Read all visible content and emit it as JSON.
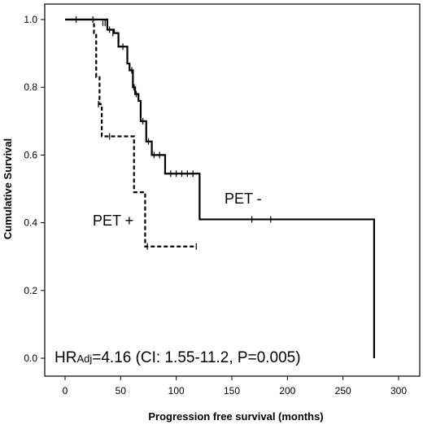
{
  "chart_data": {
    "type": "line",
    "step": true,
    "xlabel": "Progression free survival (months)",
    "ylabel": "Cumulative Survival",
    "xlim": [
      0,
      300
    ],
    "ylim": [
      0,
      1.0
    ],
    "x_ticks": [
      0,
      50,
      100,
      150,
      200,
      250,
      300
    ],
    "y_ticks": [
      0.0,
      0.2,
      0.4,
      0.6,
      0.8,
      1.0
    ],
    "x_tick_labels": [
      "0",
      "50",
      "100",
      "150",
      "200",
      "250",
      "300"
    ],
    "y_tick_labels": [
      "0.0",
      "0.2",
      "0.4",
      "0.6",
      "0.8",
      "1.0"
    ],
    "grid": false,
    "series": [
      {
        "name": "PET -",
        "style": "solid",
        "color": "#000000",
        "steps": [
          [
            0,
            1.0
          ],
          [
            38,
            0.97
          ],
          [
            44,
            0.96
          ],
          [
            48,
            0.92
          ],
          [
            56,
            0.87
          ],
          [
            58,
            0.85
          ],
          [
            61,
            0.8
          ],
          [
            63,
            0.78
          ],
          [
            66,
            0.76
          ],
          [
            68,
            0.7
          ],
          [
            73,
            0.64
          ],
          [
            78,
            0.6
          ],
          [
            90,
            0.545
          ],
          [
            121,
            0.41
          ],
          [
            278,
            0.41
          ],
          [
            278,
            0.0
          ]
        ],
        "censored": [
          [
            10,
            1.0
          ],
          [
            25,
            1.0
          ],
          [
            34,
            0.99
          ],
          [
            36,
            0.99
          ],
          [
            40,
            0.97
          ],
          [
            43,
            0.96
          ],
          [
            52,
            0.92
          ],
          [
            60,
            0.85
          ],
          [
            62,
            0.8
          ],
          [
            64,
            0.78
          ],
          [
            70,
            0.7
          ],
          [
            75,
            0.64
          ],
          [
            80,
            0.6
          ],
          [
            85,
            0.6
          ],
          [
            95,
            0.545
          ],
          [
            100,
            0.545
          ],
          [
            105,
            0.545
          ],
          [
            110,
            0.545
          ],
          [
            115,
            0.545
          ],
          [
            168,
            0.41
          ],
          [
            185,
            0.41
          ]
        ]
      },
      {
        "name": "PET +",
        "style": "dashed",
        "color": "#000000",
        "steps": [
          [
            0,
            1.0
          ],
          [
            26,
            0.96
          ],
          [
            28,
            0.83
          ],
          [
            31,
            0.75
          ],
          [
            33,
            0.655
          ],
          [
            62,
            0.49
          ],
          [
            72,
            0.33
          ],
          [
            118,
            0.33
          ]
        ],
        "censored": [
          [
            30,
            0.75
          ],
          [
            40,
            0.655
          ],
          [
            74,
            0.33
          ],
          [
            118,
            0.33
          ]
        ]
      }
    ],
    "annotations": {
      "pet_minus_label": "PET -",
      "pet_plus_label": "PET +",
      "hr_prefix": "HR",
      "hr_subscript": "Adj",
      "hr_rest": "=4.16 (CI: 1.55-11.2, P=0.005)"
    }
  }
}
